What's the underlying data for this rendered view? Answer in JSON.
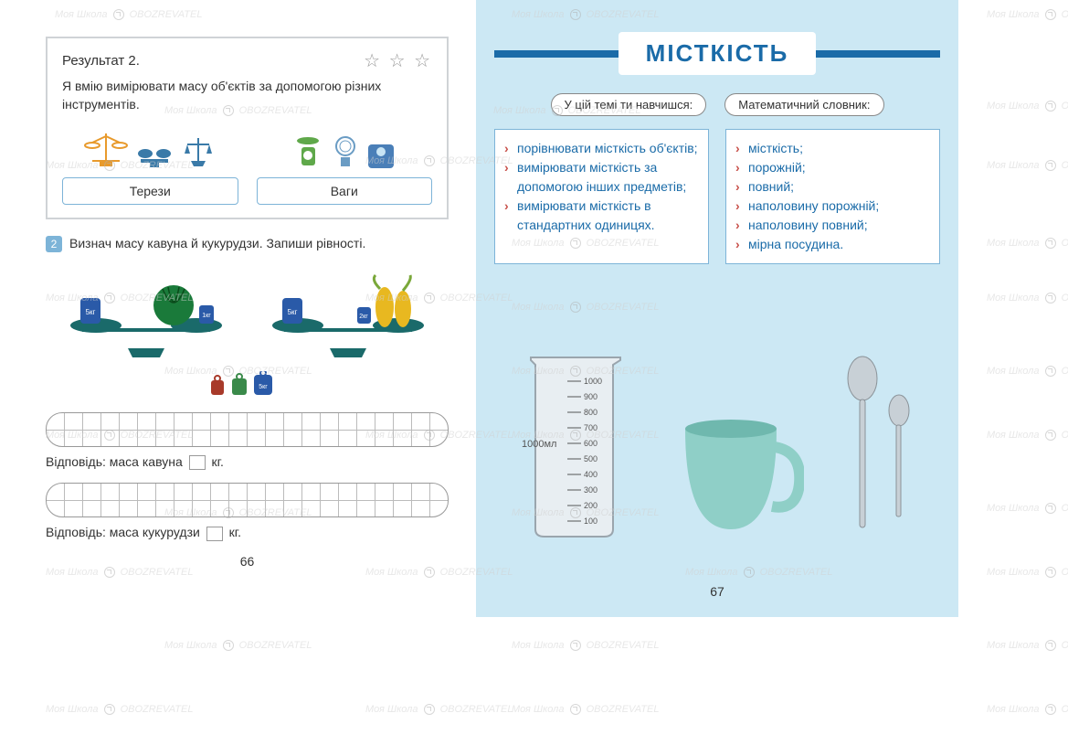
{
  "watermark": {
    "text1": "Моя Школа",
    "text2": "OBOZREVATEL"
  },
  "left": {
    "result_title": "Результат 2.",
    "stars": "☆ ☆ ☆",
    "result_desc": "Я вмію вимірювати масу об'єктів за допомогою різних інструментів.",
    "tool1_label": "Терези",
    "tool2_label": "Ваги",
    "task_num": "2",
    "task_text": "Визнач масу кавуна й кукурудзи. Запиши рівності.",
    "weights": {
      "left_pan1": "5кг",
      "right_pan1": "1кг",
      "left_pan2": "5кг",
      "right_pan2": "2кг",
      "small_red": "1кг",
      "small_green": "2кг",
      "small_blue": "5кг"
    },
    "answer1_prefix": "Відповідь: маса кавуна",
    "answer1_suffix": "кг.",
    "answer2_prefix": "Відповідь: маса кукурудзи",
    "answer2_suffix": "кг.",
    "page_num": "66"
  },
  "right": {
    "title": "МІСТКІСТЬ",
    "pill1": "У цій темі ти навчишся:",
    "pill2": "Математичний словник:",
    "learn_items": [
      "порівнювати місткість об'єктів;",
      "вимірювати місткість за допомогою інших предметів;",
      "вимірювати місткість в стандартних одиницях."
    ],
    "vocab_items": [
      "місткість;",
      "порожній;",
      "повний;",
      "наполовину порожній;",
      "наполовину повний;",
      "мірна посудина."
    ],
    "beaker": {
      "label": "1000мл",
      "ticks": [
        "1000",
        "900",
        "800",
        "700",
        "600",
        "500",
        "400",
        "300",
        "200",
        "100"
      ]
    },
    "page_num": "67"
  },
  "colors": {
    "blue_accent": "#1a6ba8",
    "light_blue_bg": "#cce8f4",
    "border_blue": "#7db4d8",
    "red_bullet": "#c8504a",
    "watermelon": "#1a7a3a",
    "corn": "#e8b820",
    "cup": "#8fcfc7",
    "beaker_gray": "#9aa5ad"
  }
}
